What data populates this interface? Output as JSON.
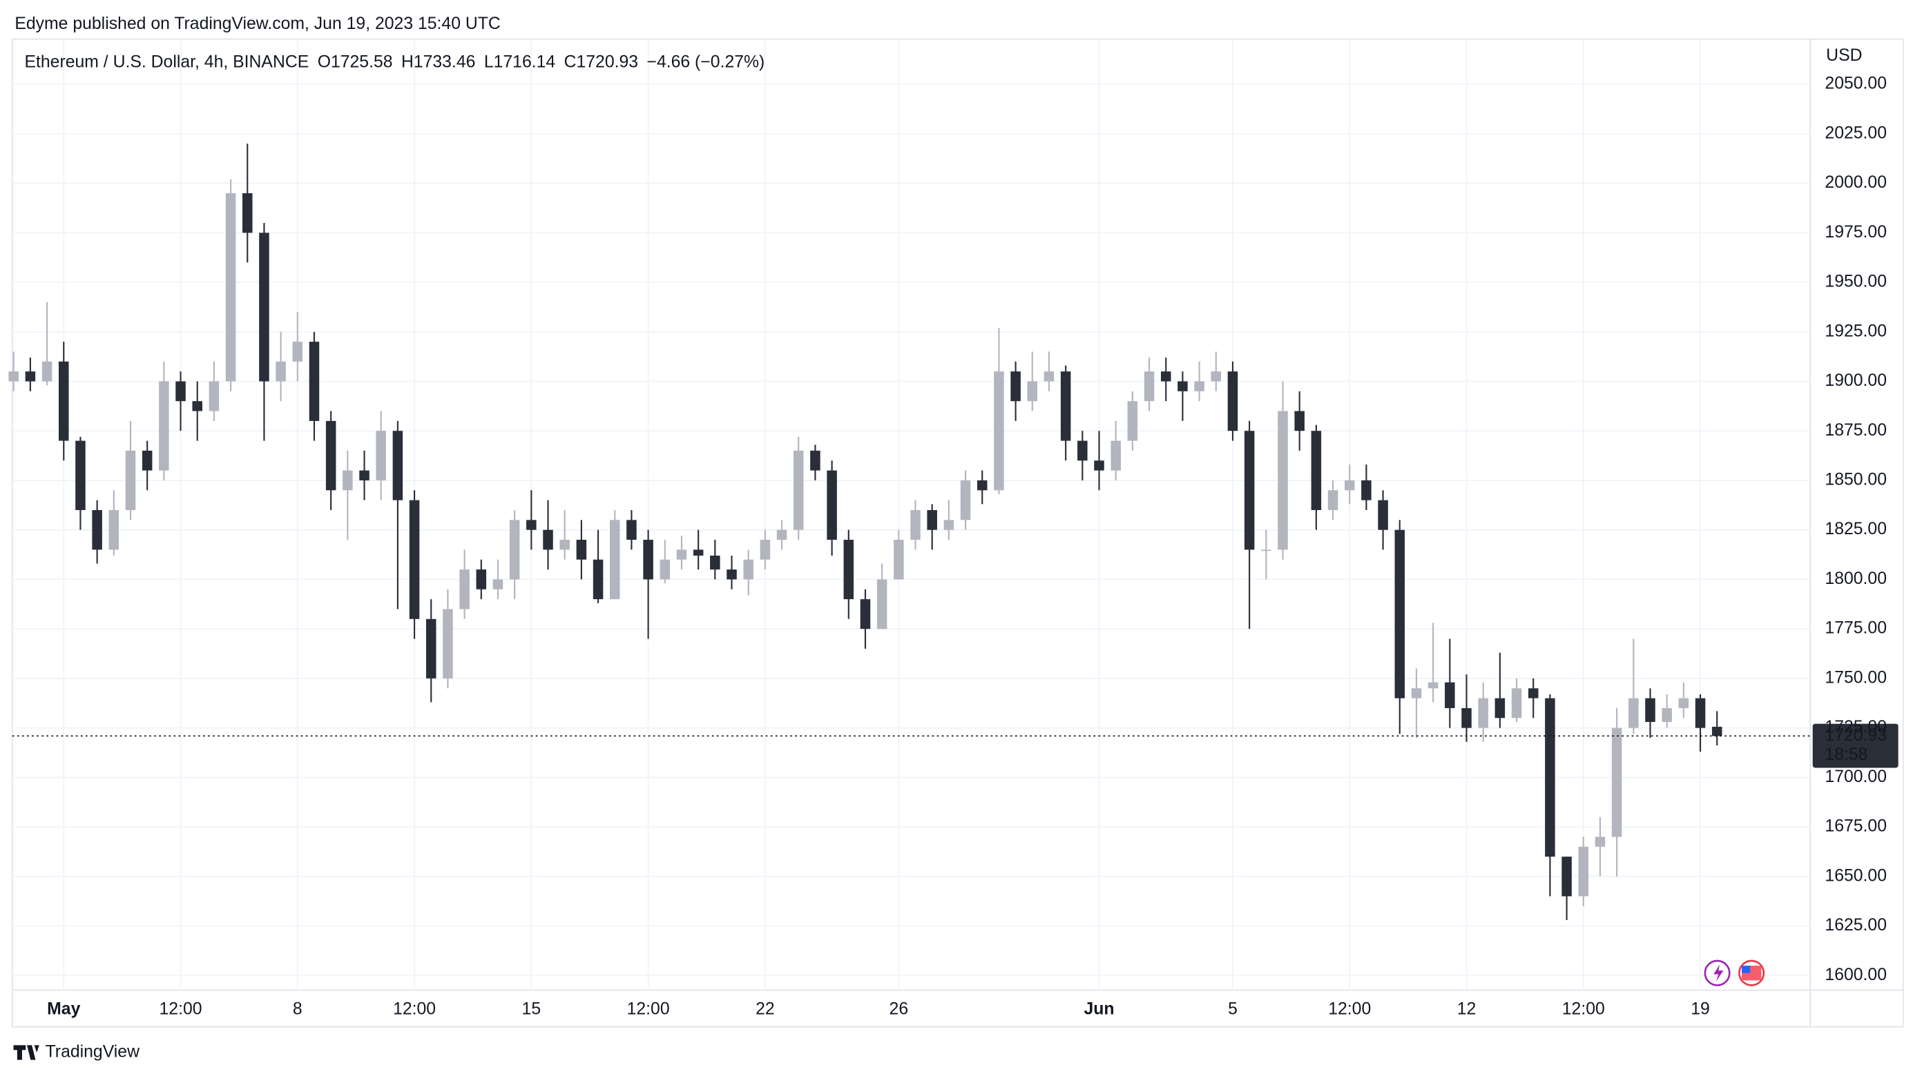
{
  "header": {
    "publisher": "Edyme published on TradingView.com, Jun 19, 2023 15:40 UTC",
    "symbol": "Ethereum / U.S. Dollar, 4h, BINANCE",
    "ohlc": [
      "O1725.58",
      "H1733.46",
      "L1716.14",
      "C1720.93",
      "−4.66 (−0.27%)"
    ],
    "currency": "USD",
    "countdown": "18:58"
  },
  "footer": {
    "brand": "TradingView"
  },
  "chart_data": {
    "type": "candlestick",
    "up_color": "#b2b5be",
    "down_color": "#2a2e39",
    "grid": true,
    "x": [
      -1.5,
      -1,
      -0.5,
      0,
      0.5,
      1,
      1.5,
      2,
      2.5,
      3,
      3.5,
      4,
      4.5,
      5,
      5.5,
      6,
      6.5,
      7,
      7.5,
      8,
      8.5,
      9,
      9.5,
      10,
      10.5,
      11,
      11.5,
      12,
      12.5,
      13,
      13.5,
      14,
      14.5,
      15,
      15.5,
      16,
      16.5,
      17,
      17.5,
      18,
      18.5,
      19,
      19.5,
      20,
      20.5,
      21,
      21.5,
      22,
      22.5,
      23,
      23.5,
      24,
      24.5,
      25,
      25.5,
      26,
      26.5,
      27,
      27.5,
      28,
      28.5,
      29,
      29.5,
      30,
      30.5,
      31,
      31.5,
      32,
      32.5,
      33,
      33.5,
      34,
      34.5,
      35,
      35.5,
      36,
      36.5,
      37,
      37.5,
      38,
      38.5,
      39,
      39.5,
      40,
      40.5,
      41,
      41.5,
      42,
      42.5,
      43,
      43.5,
      44,
      44.5,
      45,
      45.5,
      46,
      46.5,
      47,
      47.5,
      48,
      48.5,
      49,
      49.5
    ],
    "open": [
      1900,
      1905,
      1900,
      1910,
      1870,
      1835,
      1815,
      1835,
      1865,
      1855,
      1900,
      1890,
      1885,
      1900,
      1995,
      1975,
      1900,
      1910,
      1920,
      1880,
      1845,
      1855,
      1850,
      1875,
      1840,
      1780,
      1750,
      1785,
      1805,
      1795,
      1800,
      1830,
      1825,
      1815,
      1820,
      1810,
      1790,
      1830,
      1820,
      1800,
      1810,
      1815,
      1812,
      1805,
      1800,
      1810,
      1820,
      1825,
      1865,
      1855,
      1820,
      1790,
      1775,
      1800,
      1820,
      1835,
      1825,
      1830,
      1850,
      1845,
      1905,
      1890,
      1900,
      1905,
      1870,
      1860,
      1855,
      1870,
      1890,
      1905,
      1900,
      1895,
      1900,
      1905,
      1875,
      1815,
      1815,
      1885,
      1875,
      1835,
      1845,
      1850,
      1840,
      1825,
      1740,
      1745,
      1748,
      1735,
      1725,
      1740,
      1730,
      1745,
      1740,
      1660,
      1640,
      1665,
      1670,
      1725,
      1740,
      1728,
      1735,
      1740,
      1725.58
    ],
    "high": [
      1915,
      1912,
      1940,
      1920,
      1872,
      1840,
      1845,
      1880,
      1870,
      1910,
      1905,
      1900,
      1910,
      2002,
      2020,
      1980,
      1925,
      1935,
      1925,
      1885,
      1865,
      1865,
      1885,
      1880,
      1845,
      1790,
      1795,
      1815,
      1810,
      1810,
      1835,
      1845,
      1840,
      1835,
      1830,
      1825,
      1835,
      1835,
      1825,
      1820,
      1822,
      1825,
      1820,
      1812,
      1815,
      1825,
      1830,
      1872,
      1868,
      1860,
      1825,
      1795,
      1808,
      1825,
      1840,
      1838,
      1840,
      1855,
      1855,
      1927,
      1910,
      1915,
      1915,
      1908,
      1875,
      1875,
      1880,
      1895,
      1912,
      1912,
      1905,
      1910,
      1915,
      1910,
      1880,
      1825,
      1900,
      1895,
      1878,
      1850,
      1858,
      1858,
      1845,
      1830,
      1755,
      1778,
      1770,
      1752,
      1748,
      1763,
      1750,
      1750,
      1742,
      1660,
      1670,
      1680,
      1735,
      1770,
      1745,
      1742,
      1748,
      1742,
      1733.46
    ],
    "low": [
      1895,
      1895,
      1898,
      1860,
      1825,
      1808,
      1812,
      1830,
      1845,
      1850,
      1875,
      1870,
      1880,
      1895,
      1960,
      1870,
      1890,
      1900,
      1870,
      1835,
      1820,
      1840,
      1840,
      1785,
      1770,
      1738,
      1745,
      1780,
      1790,
      1790,
      1790,
      1815,
      1805,
      1810,
      1800,
      1788,
      1790,
      1815,
      1770,
      1798,
      1805,
      1805,
      1800,
      1795,
      1792,
      1805,
      1815,
      1820,
      1850,
      1812,
      1780,
      1765,
      1775,
      1800,
      1815,
      1815,
      1820,
      1825,
      1838,
      1843,
      1880,
      1885,
      1895,
      1860,
      1850,
      1845,
      1850,
      1865,
      1885,
      1890,
      1880,
      1890,
      1895,
      1870,
      1775,
      1800,
      1810,
      1865,
      1825,
      1830,
      1838,
      1835,
      1815,
      1722,
      1720,
      1738,
      1725,
      1718,
      1718,
      1725,
      1728,
      1730,
      1640,
      1628,
      1635,
      1650,
      1650,
      1722,
      1720,
      1725,
      1730,
      1713,
      1716.14
    ],
    "close": [
      1905,
      1900,
      1910,
      1870,
      1835,
      1815,
      1835,
      1865,
      1855,
      1900,
      1890,
      1885,
      1900,
      1995,
      1975,
      1900,
      1910,
      1920,
      1880,
      1845,
      1855,
      1850,
      1875,
      1840,
      1780,
      1750,
      1785,
      1805,
      1795,
      1800,
      1830,
      1825,
      1815,
      1820,
      1810,
      1790,
      1830,
      1820,
      1800,
      1810,
      1815,
      1812,
      1805,
      1800,
      1810,
      1820,
      1825,
      1865,
      1855,
      1820,
      1790,
      1775,
      1800,
      1820,
      1835,
      1825,
      1830,
      1850,
      1845,
      1905,
      1890,
      1900,
      1905,
      1870,
      1860,
      1855,
      1870,
      1890,
      1905,
      1900,
      1895,
      1900,
      1905,
      1875,
      1815,
      1815,
      1885,
      1875,
      1835,
      1845,
      1850,
      1840,
      1825,
      1740,
      1745,
      1748,
      1735,
      1725,
      1740,
      1730,
      1745,
      1740,
      1660,
      1640,
      1665,
      1670,
      1725,
      1740,
      1728,
      1735,
      1740,
      1725,
      1720.93
    ],
    "last_price": 1720.93,
    "xlim": [
      -1.54,
      52.29
    ],
    "xticks": [
      {
        "value": 0,
        "label": "May"
      },
      {
        "value": 3.5,
        "label": "12:00"
      },
      {
        "value": 7,
        "label": "8"
      },
      {
        "value": 10.5,
        "label": "12:00"
      },
      {
        "value": 14,
        "label": "15"
      },
      {
        "value": 17.5,
        "label": "12:00"
      },
      {
        "value": 21,
        "label": "22"
      },
      {
        "value": 25,
        "label": "26"
      },
      {
        "value": 31,
        "label": "Jun"
      },
      {
        "value": 35,
        "label": "5"
      },
      {
        "value": 38.5,
        "label": "12:00"
      },
      {
        "value": 42,
        "label": "12"
      },
      {
        "value": 45.5,
        "label": "12:00"
      },
      {
        "value": 49,
        "label": "19"
      }
    ],
    "ylim": [
      1592.6,
      2072.8
    ],
    "yticks": [
      {
        "value": 1600,
        "label": "1600.00"
      },
      {
        "value": 1625,
        "label": "1625.00"
      },
      {
        "value": 1650,
        "label": "1650.00"
      },
      {
        "value": 1675,
        "label": "1675.00"
      },
      {
        "value": 1700,
        "label": "1700.00"
      },
      {
        "value": 1725,
        "label": "1725.00"
      },
      {
        "value": 1750,
        "label": "1750.00"
      },
      {
        "value": 1775,
        "label": "1775.00"
      },
      {
        "value": 1800,
        "label": "1800.00"
      },
      {
        "value": 1825,
        "label": "1825.00"
      },
      {
        "value": 1850,
        "label": "1850.00"
      },
      {
        "value": 1875,
        "label": "1875.00"
      },
      {
        "value": 1900,
        "label": "1900.00"
      },
      {
        "value": 1925,
        "label": "1925.00"
      },
      {
        "value": 1950,
        "label": "1950.00"
      },
      {
        "value": 1975,
        "label": "1975.00"
      },
      {
        "value": 2000,
        "label": "2000.00"
      },
      {
        "value": 2025,
        "label": "2025.00"
      },
      {
        "value": 2050,
        "label": "2050.00"
      }
    ]
  }
}
